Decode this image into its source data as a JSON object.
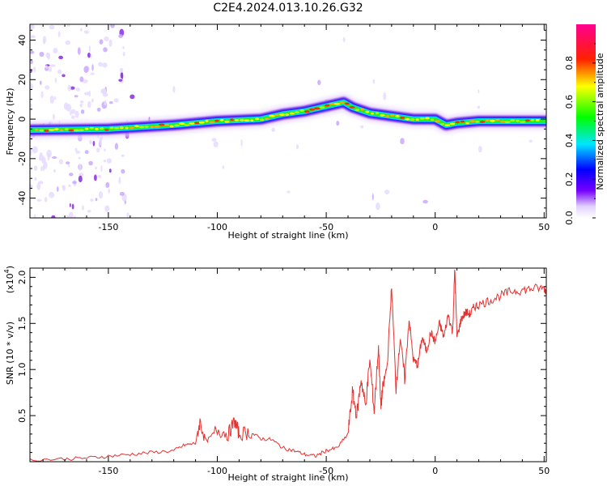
{
  "figure_title": "C2E4.2024.013.10.26.G32",
  "chart_data": [
    {
      "type": "heatmap",
      "title": "C2E4.2024.013.10.26.G32",
      "xlabel": "Height of straight line (km)",
      "ylabel": "Frequency (Hz)",
      "xlim": [
        -186,
        51
      ],
      "ylim": [
        -50,
        48
      ],
      "xticks": [
        -150,
        -100,
        -50,
        0,
        50
      ],
      "yticks": [
        40,
        20,
        0,
        -20,
        -40
      ],
      "grid": false,
      "ridge": {
        "x": [
          -186,
          -150,
          -120,
          -100,
          -80,
          -70,
          -60,
          -50,
          -42,
          -38,
          -30,
          -20,
          -10,
          0,
          5,
          10,
          20,
          30,
          40,
          51
        ],
        "y": [
          -5.5,
          -5,
          -3,
          -1,
          0,
          2.5,
          4,
          6.5,
          8.5,
          6,
          3,
          1.5,
          0,
          0,
          -3,
          -2,
          -1,
          -1,
          -1,
          -1
        ]
      },
      "colorbar": {
        "label": "Normalized spectral amplitude",
        "range": [
          0.0,
          1.0
        ],
        "ticks": [
          0.0,
          0.2,
          0.4,
          0.6,
          0.8
        ],
        "tick_labels": [
          "0.0",
          "0.2",
          "0.4",
          "0.6",
          "0.8"
        ],
        "colormap": "rainbow"
      }
    },
    {
      "type": "line",
      "xlabel": "Height of straight line (km)",
      "ylabel": "SNR (10 * v/v)",
      "scale_label": "(x10",
      "scale_exponent": "4",
      "scale_close": ")",
      "xlim": [
        -186,
        51
      ],
      "ylim": [
        0,
        2.1
      ],
      "xticks": [
        -150,
        -100,
        -50,
        0,
        50
      ],
      "yticks": [
        0.5,
        1.0,
        1.5,
        2.0
      ],
      "ytick_labels": [
        "0.5",
        "1.0",
        "1.5",
        "2.0"
      ],
      "color": "#e8302f",
      "series": [
        {
          "name": "SNR",
          "x": [
            -186,
            -170,
            -160,
            -150,
            -140,
            -130,
            -120,
            -115,
            -110,
            -108,
            -105,
            -100,
            -95,
            -92,
            -90,
            -85,
            -80,
            -75,
            -70,
            -65,
            -60,
            -55,
            -50,
            -45,
            -40,
            -38,
            -36,
            -34,
            -32,
            -30,
            -28,
            -26,
            -25,
            -24,
            -22,
            -20,
            -18,
            -16,
            -14,
            -12,
            -10,
            -8,
            -6,
            -4,
            -2,
            0,
            2,
            4,
            6,
            8,
            9,
            10,
            12,
            14,
            16,
            18,
            20,
            25,
            30,
            35,
            40,
            45,
            50,
            51
          ],
          "y": [
            0.02,
            0.03,
            0.04,
            0.06,
            0.08,
            0.1,
            0.12,
            0.18,
            0.2,
            0.43,
            0.22,
            0.35,
            0.3,
            0.44,
            0.3,
            0.32,
            0.25,
            0.24,
            0.15,
            0.12,
            0.08,
            0.06,
            0.12,
            0.15,
            0.3,
            0.75,
            0.5,
            0.9,
            0.6,
            1.1,
            0.55,
            1.25,
            0.6,
            0.8,
            1.05,
            1.9,
            0.8,
            1.35,
            0.9,
            1.55,
            1.1,
            1.05,
            1.35,
            1.2,
            1.4,
            1.3,
            1.5,
            1.35,
            1.6,
            1.4,
            2.1,
            1.35,
            1.55,
            1.62,
            1.6,
            1.68,
            1.7,
            1.75,
            1.8,
            1.85,
            1.86,
            1.88,
            1.88,
            1.85
          ]
        }
      ]
    }
  ]
}
